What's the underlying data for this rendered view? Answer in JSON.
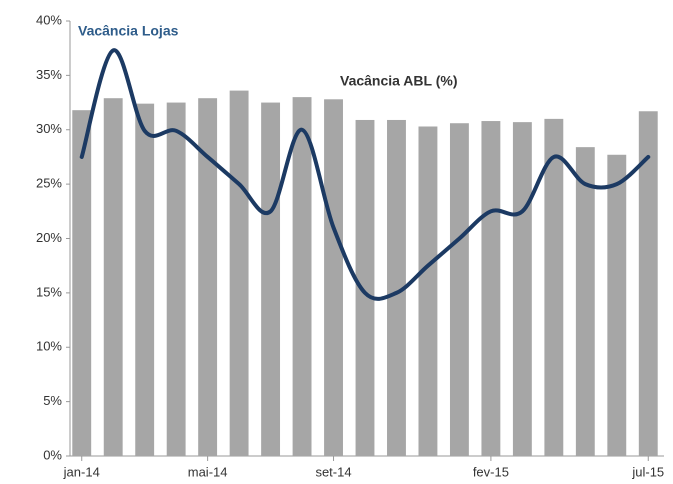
{
  "chart_data": {
    "type": "bar_line",
    "categories": [
      "jan-14",
      null,
      null,
      null,
      "mai-14",
      null,
      null,
      null,
      "set-14",
      null,
      null,
      null,
      null,
      "fev-15",
      null,
      null,
      null,
      null,
      "jul-15"
    ],
    "series": [
      {
        "name": "Vacância ABL (%)",
        "type": "bar",
        "color": "#a6a6a6",
        "values": [
          31.8,
          32.9,
          32.4,
          32.5,
          32.9,
          33.6,
          32.5,
          33.0,
          32.8,
          30.9,
          30.9,
          30.3,
          30.6,
          30.8,
          30.7,
          31.0,
          28.4,
          27.7,
          31.7
        ]
      },
      {
        "name": "Vacância Lojas",
        "type": "line",
        "color": "#1c3a63",
        "values": [
          27.5,
          37.3,
          29.9,
          29.9,
          27.5,
          25.0,
          22.5,
          30.0,
          21.0,
          15.0,
          15.0,
          17.5,
          20.0,
          22.5,
          22.5,
          27.5,
          25.0,
          25.0,
          27.5
        ]
      }
    ],
    "ylim": [
      0,
      40
    ],
    "yticks": [
      {
        "value": 0,
        "label": "0%"
      },
      {
        "value": 5,
        "label": "5%"
      },
      {
        "value": 10,
        "label": "10%"
      },
      {
        "value": 15,
        "label": "15%"
      },
      {
        "value": 20,
        "label": "20%"
      },
      {
        "value": 25,
        "label": "25%"
      },
      {
        "value": 30,
        "label": "30%"
      },
      {
        "value": 35,
        "label": "35%"
      },
      {
        "value": 40,
        "label": "40%"
      }
    ],
    "grid": false
  }
}
